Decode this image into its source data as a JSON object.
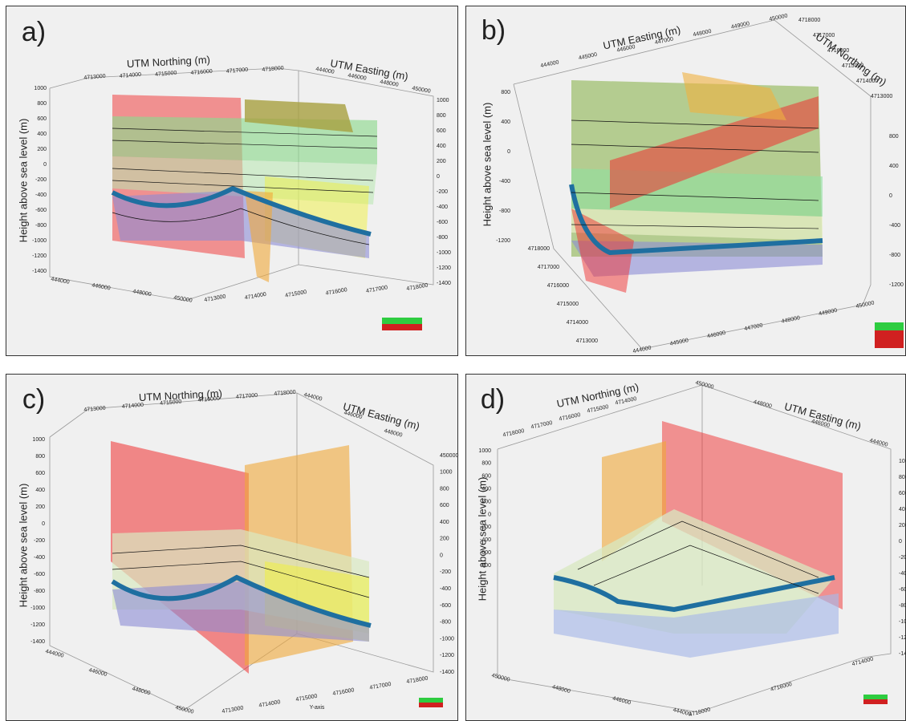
{
  "panels": [
    {
      "label": "a)",
      "northing_title": "UTM Northing (m)",
      "easting_title": "UTM Easting (m)",
      "height_title": "Height above sea level (m)",
      "height_left": [
        1000,
        800,
        600,
        400,
        200,
        0,
        -200,
        -400,
        -600,
        -800,
        -1000,
        -1200,
        -1400
      ],
      "height_right": [
        1000,
        800,
        600,
        400,
        200,
        0,
        -200,
        -400,
        -600,
        -800,
        -1000,
        -1200,
        -1400
      ],
      "northing_top": [
        4713000,
        4714000,
        4715000,
        4716000,
        4717000,
        4718000
      ],
      "easting_top": [
        444000,
        446000,
        448000,
        450000
      ],
      "easting_bottom": [
        444000,
        446000,
        448000,
        450000
      ],
      "northing_bottom": [
        4713000,
        4714000,
        4715000,
        4716000,
        4717000,
        4718000
      ]
    },
    {
      "label": "b)",
      "northing_title": "UTM Northing (m)",
      "easting_title": "UTM Easting (m)",
      "height_title": "Height above sea level (m)",
      "height_left": [
        800,
        400,
        0,
        -400,
        -800,
        -1200
      ],
      "height_right": [
        800,
        400,
        0,
        -400,
        -800,
        -1200
      ],
      "northing_top": [
        4718000,
        4717000,
        4716000,
        4715000,
        4714000,
        4713000
      ],
      "easting_top": [
        444000,
        445000,
        446000,
        447000,
        448000,
        449000,
        450000
      ],
      "easting_bottom": [
        444000,
        445000,
        446000,
        447000,
        448000,
        449000,
        450000
      ],
      "northing_bottom": [
        4718000,
        4717000,
        4716000,
        4715000,
        4714000,
        4713000
      ]
    },
    {
      "label": "c)",
      "northing_title": "UTM Northing (m)",
      "easting_title": "UTM Easting (m)",
      "height_title": "Height above sea level (m)",
      "axis_note": "Y-axis",
      "height_left": [
        1000,
        800,
        600,
        400,
        200,
        0,
        -200,
        -400,
        -600,
        -800,
        -1000,
        -1200,
        -1400
      ],
      "height_right": [
        450000,
        1000,
        800,
        600,
        400,
        200,
        0,
        -200,
        -400,
        -600,
        -800,
        -1000,
        -1200,
        -1400
      ],
      "northing_top": [
        4713000,
        4714000,
        4715000,
        4716000,
        4717000,
        4718000
      ],
      "easting_top": [
        444000,
        446000,
        448000
      ],
      "easting_bottom": [
        444000,
        446000,
        448000,
        450000
      ],
      "northing_bottom": [
        4713000,
        4714000,
        4715000,
        4716000,
        4717000,
        4718000
      ]
    },
    {
      "label": "d)",
      "northing_title": "UTM Northing (m)",
      "easting_title": "UTM Easting (m)",
      "height_title": "Height above sea level (m)",
      "height_left": [
        1000,
        800,
        600,
        400,
        200,
        0,
        -200,
        -400,
        -600,
        -800
      ],
      "height_right": [
        1000,
        800,
        600,
        400,
        200,
        0,
        -200,
        -400,
        -600,
        -800,
        -1000,
        -1200,
        -1400
      ],
      "northing_top": [
        4718000,
        4717000,
        4716000,
        4715000,
        4714000
      ],
      "easting_top": [
        450000,
        448000,
        446000,
        444000
      ],
      "easting_bottom": [
        450000,
        448000,
        446000,
        444000
      ],
      "northing_bottom": [
        4718000,
        4716000,
        4714000
      ]
    }
  ]
}
